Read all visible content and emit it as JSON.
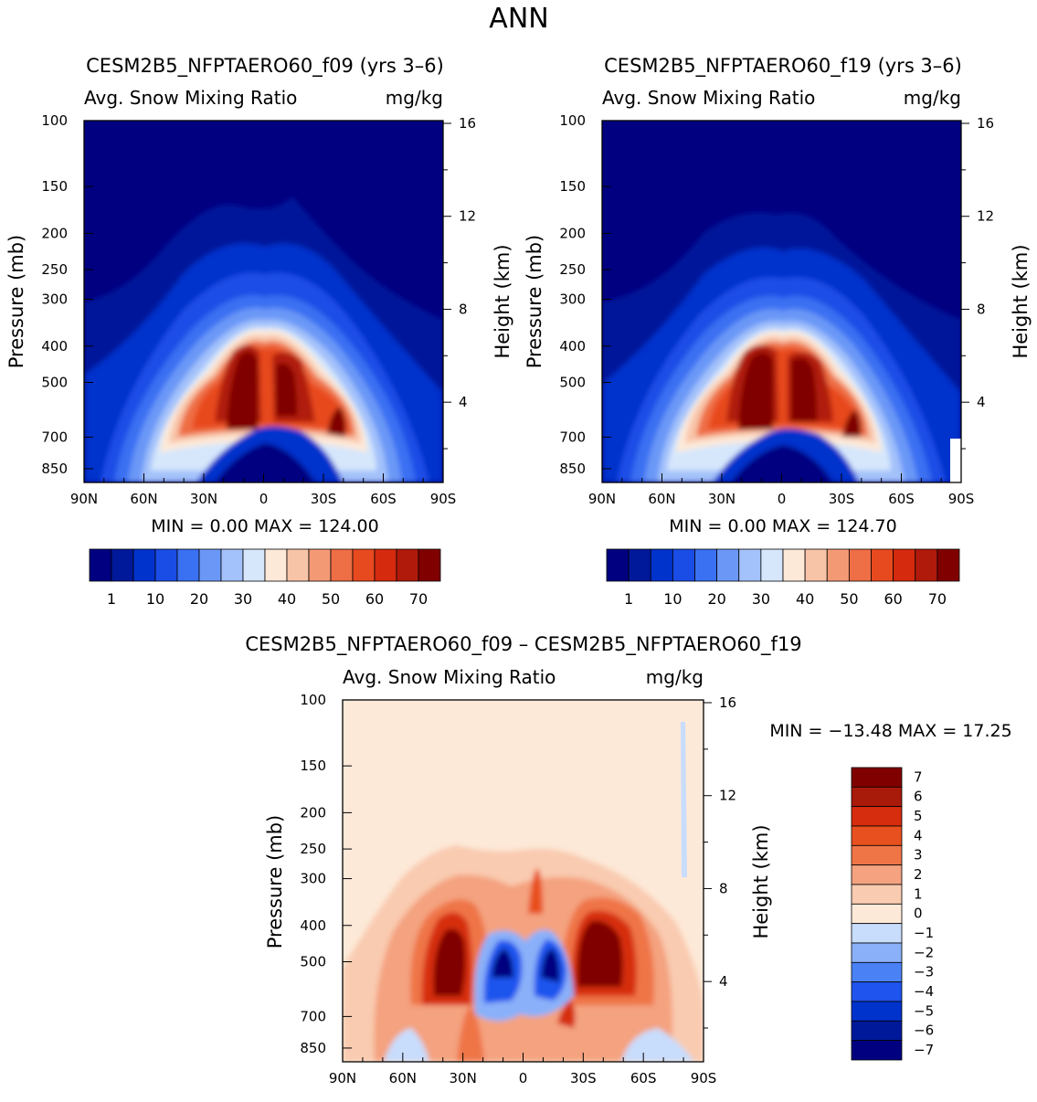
{
  "page_title": "ANN",
  "colors": {
    "blues": [
      "#000080",
      "#00199a",
      "#0033cc",
      "#1a4de6",
      "#3a70f2",
      "#6b98f7",
      "#a3c1fa",
      "#d6e7fc"
    ],
    "reds": [
      "#fde9d8",
      "#f8c4a8",
      "#f39a75",
      "#ee6e45",
      "#e84a1f",
      "#d62a0e",
      "#b01a0a",
      "#800000"
    ],
    "diff": [
      "#000080",
      "#00199a",
      "#0033cc",
      "#1f55ee",
      "#4a82f5",
      "#8ab0f9",
      "#c8dcfc",
      "#fde9d8",
      "#f9cbb0",
      "#f4a27f",
      "#ef7547",
      "#e8501f",
      "#d62d0e",
      "#a81a0a",
      "#800000"
    ]
  },
  "panel_left": {
    "title": "CESM2B5_NFPTAERO60_f09 (yrs 3–6)",
    "variable": "Avg. Snow Mixing Ratio",
    "units": "mg/kg",
    "ylabel": "Pressure (mb)",
    "y2label": "Height (km)",
    "minmax": "MIN =    0.00   MAX = 124.00"
  },
  "panel_right": {
    "title": "CESM2B5_NFPTAERO60_f19 (yrs 3–6)",
    "variable": "Avg. Snow Mixing Ratio",
    "units": "mg/kg",
    "ylabel": "Pressure (mb)",
    "y2label": "Height (km)",
    "minmax": "MIN =    0.00   MAX = 124.70"
  },
  "panel_diff": {
    "title": "CESM2B5_NFPTAERO60_f09 – CESM2B5_NFPTAERO60_f19",
    "variable": "Avg. Snow Mixing Ratio",
    "units": "mg/kg",
    "ylabel": "Pressure (mb)",
    "y2label": "Height (km)",
    "minmax": "MIN = −13.48   MAX =   17.25"
  },
  "chart_data": [
    {
      "type": "heatmap",
      "title": "CESM2B5_NFPTAERO60_f09 (yrs 3-6)",
      "variable": "Avg. Snow Mixing Ratio",
      "units": "mg/kg",
      "x_ticks": [
        "90N",
        "60N",
        "30N",
        "0",
        "30S",
        "60S",
        "90S"
      ],
      "xlim": [
        90,
        -90
      ],
      "y_ticks": [
        "100",
        "150",
        "200",
        "250",
        "300",
        "400",
        "500",
        "700",
        "850"
      ],
      "ylim_mb": [
        100,
        925
      ],
      "y2_ticks": [
        "16",
        "12",
        "8",
        "4"
      ],
      "colorbar_labels": [
        "1",
        "10",
        "20",
        "30",
        "40",
        "50",
        "60",
        "70"
      ],
      "colorbar_levels": 16,
      "min": 0.0,
      "max": 124.0
    },
    {
      "type": "heatmap",
      "title": "CESM2B5_NFPTAERO60_f19 (yrs 3-6)",
      "variable": "Avg. Snow Mixing Ratio",
      "units": "mg/kg",
      "x_ticks": [
        "90N",
        "60N",
        "30N",
        "0",
        "30S",
        "60S",
        "90S"
      ],
      "xlim": [
        90,
        -90
      ],
      "y_ticks": [
        "100",
        "150",
        "200",
        "250",
        "300",
        "400",
        "500",
        "700",
        "850"
      ],
      "ylim_mb": [
        100,
        925
      ],
      "y2_ticks": [
        "16",
        "12",
        "8",
        "4"
      ],
      "colorbar_labels": [
        "1",
        "10",
        "20",
        "30",
        "40",
        "50",
        "60",
        "70"
      ],
      "colorbar_levels": 16,
      "min": 0.0,
      "max": 124.7
    },
    {
      "type": "heatmap",
      "title": "CESM2B5_NFPTAERO60_f09 - CESM2B5_NFPTAERO60_f19",
      "variable": "Avg. Snow Mixing Ratio",
      "units": "mg/kg",
      "x_ticks": [
        "90N",
        "60N",
        "30N",
        "0",
        "30S",
        "60S",
        "90S"
      ],
      "xlim": [
        90,
        -90
      ],
      "y_ticks": [
        "100",
        "150",
        "200",
        "250",
        "300",
        "400",
        "500",
        "700",
        "850"
      ],
      "ylim_mb": [
        100,
        925
      ],
      "y2_ticks": [
        "16",
        "12",
        "8",
        "4"
      ],
      "colorbar_labels": [
        "7",
        "6",
        "5",
        "4",
        "3",
        "2",
        "1",
        "0",
        "−1",
        "−2",
        "−3",
        "−4",
        "−5",
        "−6",
        "−7"
      ],
      "colorbar_levels": 15,
      "min": -13.48,
      "max": 17.25
    }
  ]
}
